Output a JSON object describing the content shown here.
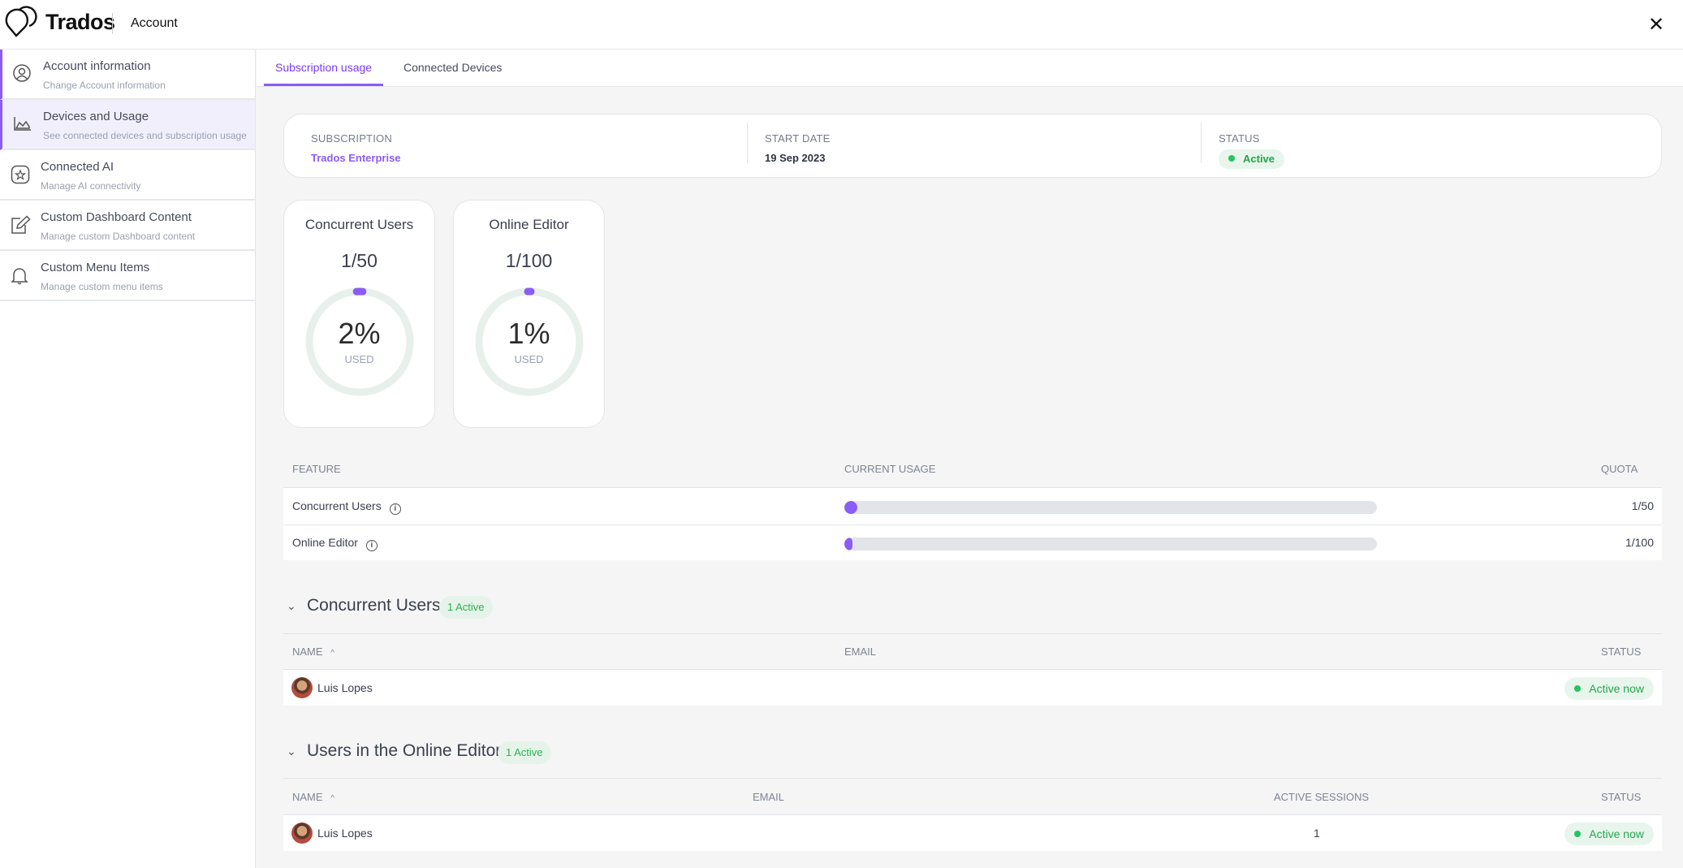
{
  "header": {
    "brand": "Trados",
    "section": "Account",
    "close_icon": "close-icon"
  },
  "sidebar": {
    "items": [
      {
        "title": "Account information",
        "subtitle": "Change Account information",
        "icon": "user-circle-icon"
      },
      {
        "title": "Devices and Usage",
        "subtitle": "See connected devices and subscription usage",
        "icon": "area-chart-icon"
      },
      {
        "title": "Connected AI",
        "subtitle": "Manage AI connectivity",
        "icon": "ai-star-icon"
      },
      {
        "title": "Custom Dashboard Content",
        "subtitle": "Manage custom Dashboard content",
        "icon": "edit-icon"
      },
      {
        "title": "Custom Menu Items",
        "subtitle": "Manage custom menu items",
        "icon": "bell-icon"
      }
    ]
  },
  "tabs": [
    {
      "label": "Subscription usage",
      "active": true
    },
    {
      "label": "Connected Devices",
      "active": false
    }
  ],
  "subscription": {
    "subscription_label": "SUBSCRIPTION",
    "subscription_value": "Trados Enterprise",
    "start_label": "START DATE",
    "start_value": "19 Sep 2023",
    "status_label": "STATUS",
    "status_value": "Active"
  },
  "gauges": [
    {
      "title": "Concurrent Users",
      "ratio": "1/50",
      "percent": "2%",
      "percent_value": 2,
      "used": "USED"
    },
    {
      "title": "Online Editor",
      "ratio": "1/100",
      "percent": "1%",
      "percent_value": 1,
      "used": "USED"
    }
  ],
  "usage_table": {
    "headers": {
      "feature": "FEATURE",
      "usage": "CURRENT USAGE",
      "quota": "QUOTA"
    },
    "rows": [
      {
        "feature": "Concurrent Users",
        "info": "i",
        "usage_percent": 2,
        "quota": "1/50"
      },
      {
        "feature": "Online Editor",
        "info": "i",
        "usage_percent": 1,
        "quota": "1/100"
      }
    ]
  },
  "concurrent_users": {
    "title": "Concurrent Users",
    "badge": "1 Active",
    "headers": {
      "name": "NAME",
      "sort": "^",
      "email": "EMAIL",
      "status": "STATUS"
    },
    "rows": [
      {
        "name": "Luis Lopes",
        "email": "",
        "status": "Active now"
      }
    ]
  },
  "online_editor_users": {
    "title": "Users in the Online Editor",
    "badge": "1 Active",
    "headers": {
      "name": "NAME",
      "sort": "^",
      "email": "EMAIL",
      "sessions": "ACTIVE SESSIONS",
      "status": "STATUS"
    },
    "rows": [
      {
        "name": "Luis Lopes",
        "email": "",
        "sessions": "1",
        "status": "Active now"
      }
    ]
  },
  "colors": {
    "accent": "#8b5cf6",
    "active_green": "#22c55e",
    "gauge_track": "#e8f0ec",
    "bar_track": "#e1e5ea"
  }
}
